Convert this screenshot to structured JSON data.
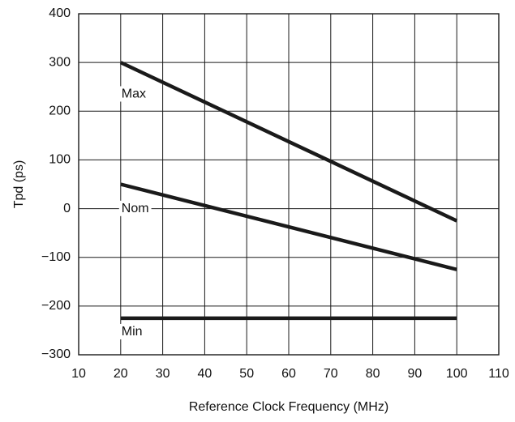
{
  "chart_data": {
    "type": "line",
    "title": "",
    "xlabel": "Reference Clock Frequency (MHz)",
    "ylabel": "Tpd (ps)",
    "xlim": [
      10,
      110
    ],
    "ylim": [
      -300,
      400
    ],
    "xticks": [
      10,
      20,
      30,
      40,
      50,
      60,
      70,
      80,
      90,
      100,
      110
    ],
    "yticks": [
      -300,
      -200,
      -100,
      0,
      100,
      200,
      300,
      400
    ],
    "xtick_labels": [
      "10",
      "20",
      "30",
      "40",
      "50",
      "60",
      "70",
      "80",
      "90",
      "100",
      "110"
    ],
    "ytick_labels": [
      "−300",
      "−200",
      "−100",
      "0",
      "100",
      "200",
      "300",
      "400"
    ],
    "grid": true,
    "legend": "none",
    "series": [
      {
        "name": "Max",
        "x": [
          20,
          100
        ],
        "y": [
          300,
          -25
        ],
        "color": "#1a1a1a"
      },
      {
        "name": "Nom",
        "x": [
          20,
          100
        ],
        "y": [
          50,
          -125
        ],
        "color": "#1a1a1a"
      },
      {
        "name": "Min",
        "x": [
          20,
          100
        ],
        "y": [
          -225,
          -225
        ],
        "color": "#1a1a1a"
      }
    ],
    "annotations": [
      {
        "series": "Max",
        "text": "Max",
        "x": 20,
        "y": 235
      },
      {
        "series": "Nom",
        "text": "Nom",
        "x": 20,
        "y": 0
      },
      {
        "series": "Min",
        "text": "Min",
        "x": 20,
        "y": -253
      }
    ]
  }
}
